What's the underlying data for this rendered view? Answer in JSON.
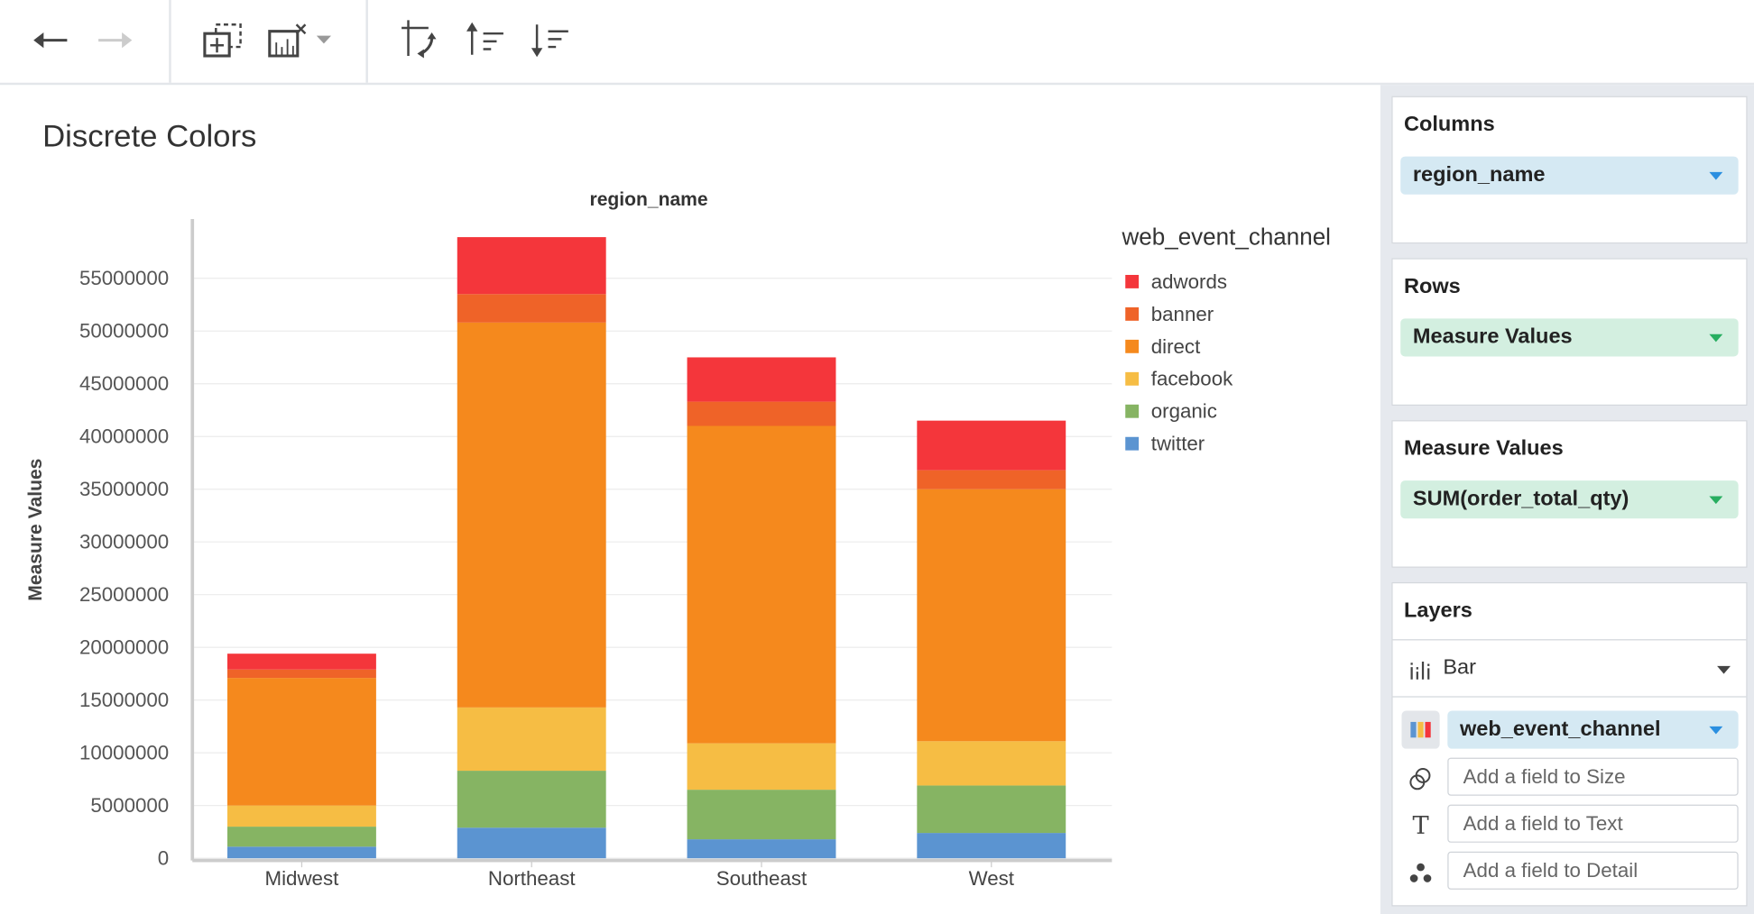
{
  "toolbar": {
    "icons": [
      "back-arrow-icon",
      "forward-arrow-icon",
      "add-chart-icon",
      "clear-chart-icon",
      "dropdown-caret-icon",
      "swap-axes-icon",
      "sort-ascending-icon",
      "sort-descending-icon"
    ]
  },
  "page": {
    "title": "Discrete Colors"
  },
  "sidebar": {
    "columns": {
      "heading": "Columns",
      "pill": "region_name"
    },
    "rows": {
      "heading": "Rows",
      "pill": "Measure Values"
    },
    "measure_values": {
      "heading": "Measure Values",
      "pill": "SUM(order_total_qty)"
    },
    "layers": {
      "heading": "Layers",
      "mark_type": "Bar",
      "color_field": "web_event_channel",
      "size_placeholder": "Add a field to Size",
      "text_placeholder": "Add a field to Text",
      "detail_placeholder": "Add a field to Detail"
    }
  },
  "chart_data": {
    "type": "bar",
    "stacked": true,
    "title": "region_name",
    "xlabel": "",
    "ylabel": "Measure Values",
    "ylim": [
      0,
      60000000
    ],
    "yticks": [
      0,
      5000000,
      10000000,
      15000000,
      20000000,
      25000000,
      30000000,
      35000000,
      40000000,
      45000000,
      50000000,
      55000000
    ],
    "grid": true,
    "legend": {
      "title": "web_event_channel",
      "position": "right"
    },
    "categories": [
      "Midwest",
      "Northeast",
      "Southeast",
      "West"
    ],
    "series": [
      {
        "name": "twitter",
        "color": "#5b94d1",
        "values": [
          1100000,
          2900000,
          1800000,
          2400000
        ]
      },
      {
        "name": "organic",
        "color": "#86b463",
        "values": [
          1900000,
          5400000,
          4700000,
          4500000
        ]
      },
      {
        "name": "facebook",
        "color": "#f6bd44",
        "values": [
          2000000,
          6000000,
          4400000,
          4200000
        ]
      },
      {
        "name": "direct",
        "color": "#f5891d",
        "values": [
          12100000,
          36500000,
          30100000,
          23900000
        ]
      },
      {
        "name": "banner",
        "color": "#ef6328",
        "values": [
          800000,
          2700000,
          2300000,
          1800000
        ]
      },
      {
        "name": "adwords",
        "color": "#f4363b",
        "values": [
          1500000,
          5400000,
          4200000,
          4700000
        ]
      }
    ]
  }
}
